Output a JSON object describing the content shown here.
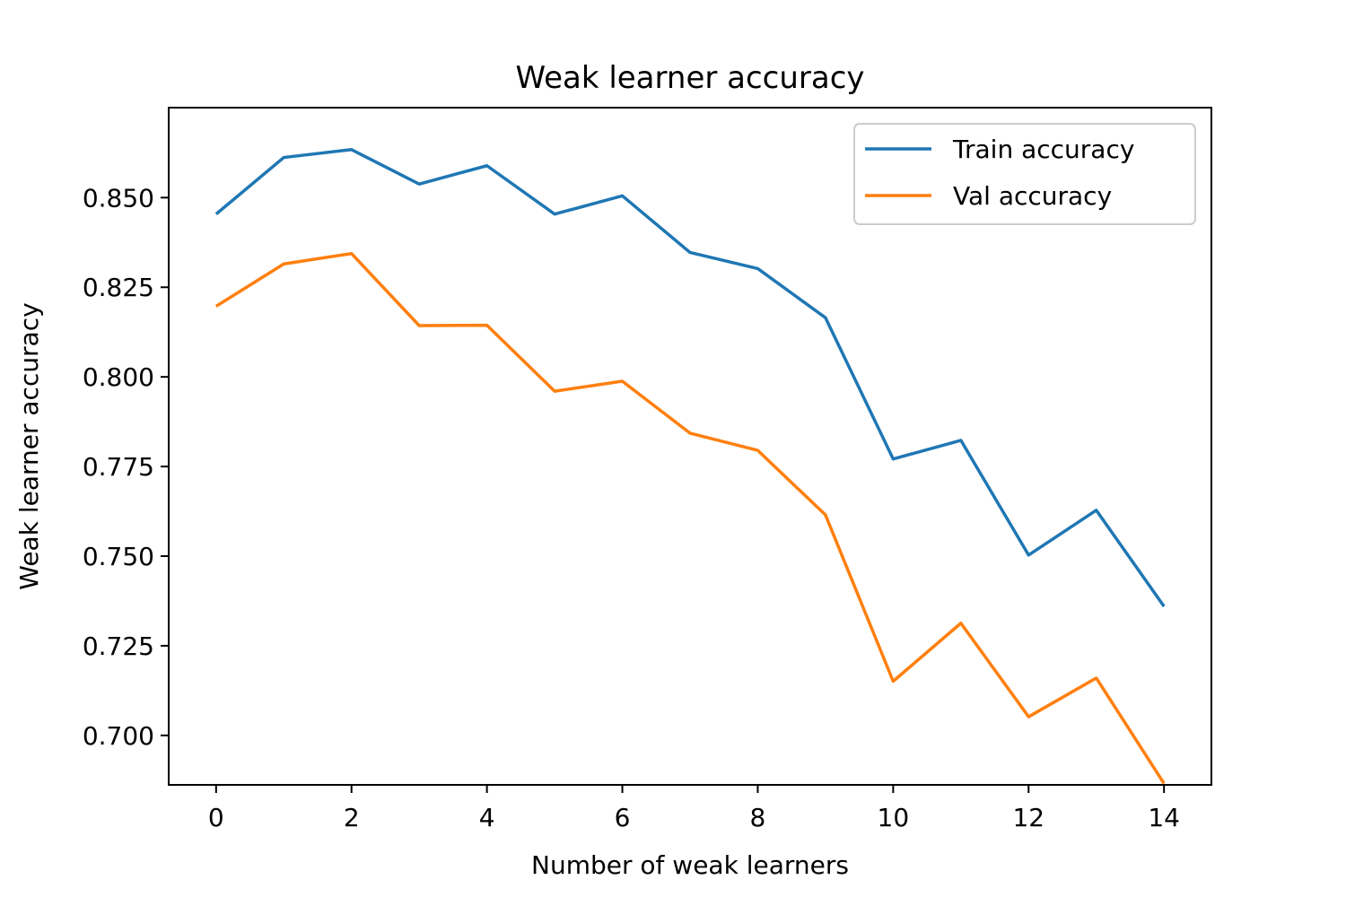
{
  "chart_data": {
    "type": "line",
    "title": "Weak learner accuracy",
    "xlabel": "Number of weak learners",
    "ylabel": "Weak learner accuracy",
    "xlim": [
      -0.7,
      14.7
    ],
    "ylim": [
      0.6862,
      0.8751
    ],
    "xticks": [
      0,
      2,
      4,
      6,
      8,
      10,
      12,
      14
    ],
    "xtick_labels": [
      "0",
      "2",
      "4",
      "6",
      "8",
      "10",
      "12",
      "14"
    ],
    "yticks": [
      0.7,
      0.725,
      0.75,
      0.775,
      0.8,
      0.825,
      0.85
    ],
    "ytick_labels": [
      "0.700",
      "0.725",
      "0.750",
      "0.775",
      "0.800",
      "0.825",
      "0.850"
    ],
    "grid": false,
    "legend_position": "top-right",
    "x": [
      0,
      1,
      2,
      3,
      4,
      5,
      6,
      7,
      8,
      9,
      10,
      11,
      12,
      13,
      14
    ],
    "series": [
      {
        "name": "Train accuracy",
        "color": "#1f77b4",
        "values": [
          0.8454,
          0.8612,
          0.8634,
          0.8538,
          0.8589,
          0.8454,
          0.8505,
          0.8347,
          0.8302,
          0.8165,
          0.7771,
          0.7823,
          0.7503,
          0.7628,
          0.736
        ]
      },
      {
        "name": "Val accuracy",
        "color": "#ff7f0e",
        "values": [
          0.8197,
          0.8315,
          0.8344,
          0.8143,
          0.8144,
          0.796,
          0.7988,
          0.7843,
          0.7795,
          0.7615,
          0.7151,
          0.7313,
          0.7052,
          0.716,
          0.6866
        ]
      }
    ]
  }
}
